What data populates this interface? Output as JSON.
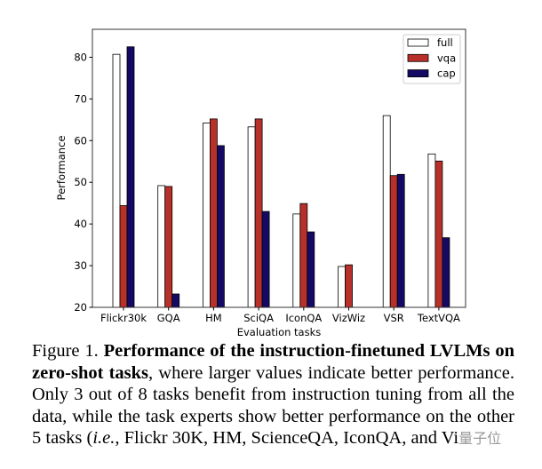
{
  "chart_data": {
    "type": "bar",
    "title": "",
    "xlabel": "Evaluation tasks",
    "ylabel": "Performance",
    "ylim": [
      20,
      86.7
    ],
    "yticks": [
      20,
      30,
      40,
      50,
      60,
      70,
      80
    ],
    "grid": false,
    "legend_position": "top-right",
    "categories": [
      "Flickr30k",
      "GQA",
      "HM",
      "SciQA",
      "IconQA",
      "VizWiz",
      "VSR",
      "TextVQA"
    ],
    "series": [
      {
        "name": "full",
        "color": "#ffffff",
        "values": [
          80.7,
          49.2,
          64.2,
          63.3,
          42.4,
          29.8,
          66.0,
          56.8
        ]
      },
      {
        "name": "vqa",
        "color": "#b8302a",
        "values": [
          44.4,
          49.0,
          65.2,
          65.2,
          44.9,
          30.2,
          51.6,
          55.1
        ]
      },
      {
        "name": "cap",
        "color": "#140a64",
        "values": [
          82.5,
          23.2,
          58.8,
          43.0,
          38.1,
          null,
          51.9,
          36.7
        ]
      }
    ]
  },
  "caption": {
    "l1_prefix": "Figure 1. ",
    "l1_bold": "Performance of the instruction-finetuned LVLMs on",
    "l2_bold": "zero-shot tasks",
    "l2_rest": ", where larger values indicate better performance.",
    "l3": "Only 3 out of 8 tasks benefit from instruction tuning from all the",
    "l4": "data, while the task experts show better performance on the other",
    "l5_a": "5 tasks (",
    "l5_ie": "i.e.",
    "l5_b": ", Flickr 30K, HM, ScienceQA, IconQA, and Vi",
    "watermark": "量子位"
  }
}
